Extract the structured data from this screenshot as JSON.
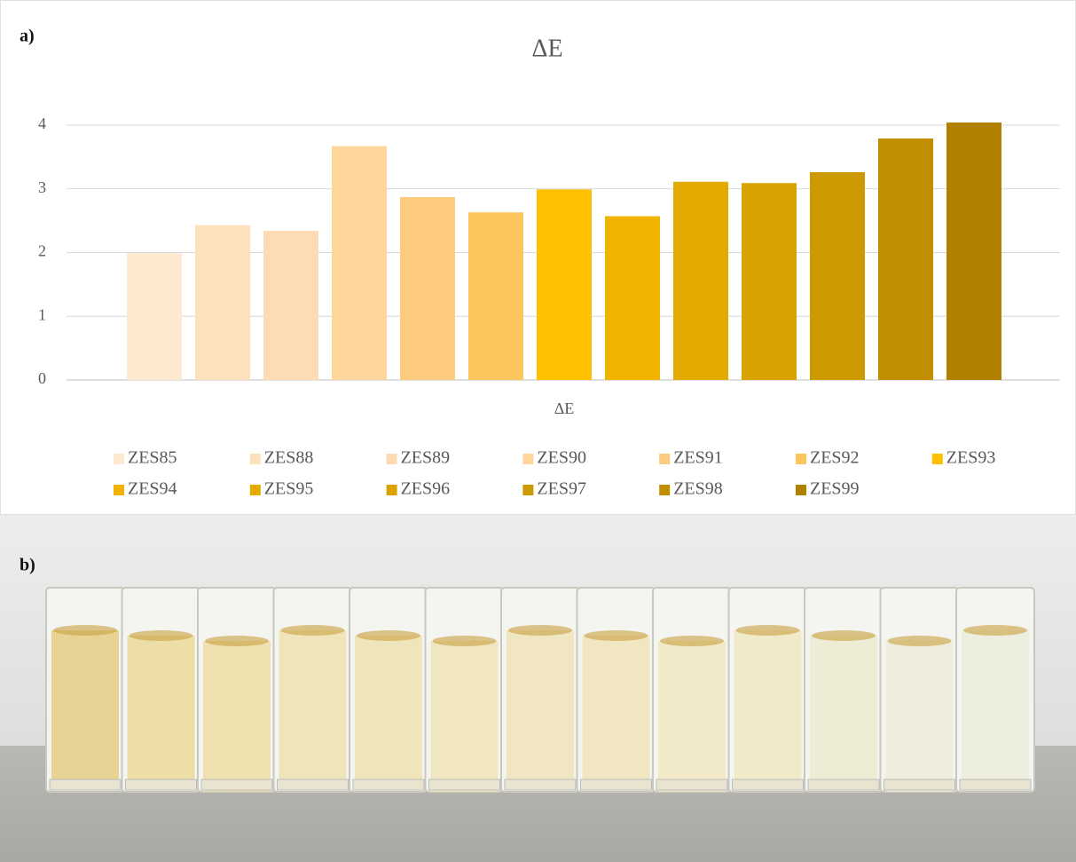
{
  "panels": {
    "a": "a)",
    "b": "b)"
  },
  "chart_data": {
    "type": "bar",
    "title": "ΔE",
    "x_label": "ΔE",
    "categories": [
      "ΔE"
    ],
    "series": [
      {
        "name": "ZES85",
        "color": "#fde9d0",
        "values": [
          1.99
        ]
      },
      {
        "name": "ZES88",
        "color": "#fde1bd",
        "values": [
          2.43
        ]
      },
      {
        "name": "ZES89",
        "color": "#fddcb3",
        "values": [
          2.34
        ]
      },
      {
        "name": "ZES90",
        "color": "#fed69b",
        "values": [
          3.67
        ]
      },
      {
        "name": "ZES91",
        "color": "#fdcb7e",
        "values": [
          2.87
        ]
      },
      {
        "name": "ZES92",
        "color": "#fdc55d",
        "values": [
          2.63
        ]
      },
      {
        "name": "ZES93",
        "color": "#ffc000",
        "values": [
          2.99
        ]
      },
      {
        "name": "ZES94",
        "color": "#f0b400",
        "values": [
          2.57
        ]
      },
      {
        "name": "ZES95",
        "color": "#e3aa00",
        "values": [
          3.11
        ]
      },
      {
        "name": "ZES96",
        "color": "#d9a200",
        "values": [
          3.09
        ]
      },
      {
        "name": "ZES97",
        "color": "#cc9900",
        "values": [
          3.26
        ]
      },
      {
        "name": "ZES98",
        "color": "#c08e00",
        "values": [
          3.79
        ]
      },
      {
        "name": "ZES99",
        "color": "#b08000",
        "values": [
          4.04
        ]
      }
    ],
    "ylim": [
      0,
      4.5
    ],
    "yticks": [
      0,
      1,
      2,
      3,
      4
    ],
    "grid": true,
    "legend": "bottom"
  }
}
